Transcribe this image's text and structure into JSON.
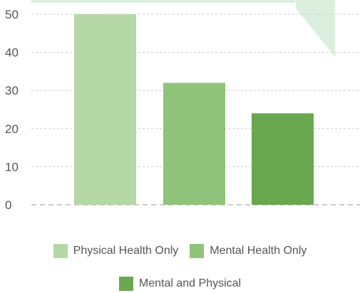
{
  "chart_data": {
    "type": "bar",
    "title": "",
    "xlabel": "",
    "ylabel": "",
    "ylim": [
      0,
      50
    ],
    "yticks": [
      0,
      10,
      20,
      30,
      40,
      50
    ],
    "grid": true,
    "legend_position": "bottom",
    "categories": [
      "Physical Health Only",
      "Mental Health Only",
      "Mental and Physical"
    ],
    "values": [
      50,
      32,
      24
    ],
    "colors": [
      "#b5d8a6",
      "#8fc47a",
      "#6aa84f"
    ],
    "decoration_color": "#dceedd"
  }
}
